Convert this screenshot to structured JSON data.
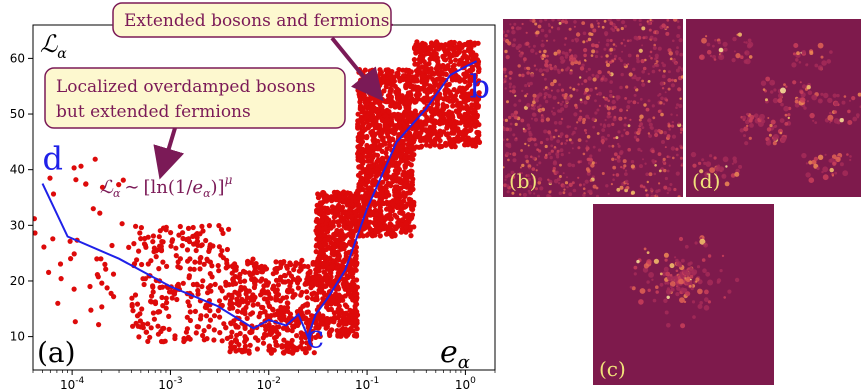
{
  "chart_data": {
    "type": "scatter",
    "panel_label": "(a)",
    "xscale": "log",
    "xlim": [
      4e-05,
      2.0
    ],
    "ylim": [
      4,
      66
    ],
    "x_tick_labels": [
      "10^-4",
      "10^-3",
      "10^-2",
      "10^-1",
      "10^0"
    ],
    "x_tick_values": [
      0.0001,
      0.001,
      0.01,
      0.1,
      1
    ],
    "y_tick_labels": [
      "10",
      "20",
      "30",
      "40",
      "50",
      "60"
    ],
    "y_tick_values": [
      10,
      20,
      30,
      40,
      50,
      60
    ],
    "ylabel_symbol": "ℒ",
    "ylabel_sub": "α",
    "xlabel_symbol": "e",
    "xlabel_sub": "α",
    "grid": false,
    "colors": {
      "scatter": "#dd0a0a",
      "line": "#1f21e8",
      "callout_fill": "#fdf8cf",
      "callout_border": "#7b1a57",
      "arrow": "#7b1a57"
    },
    "annotation_extended": "Extended bosons and fermions.",
    "annotation_localized_line1": "Localized overdamped bosons",
    "annotation_localized_line2": "but extended fermions",
    "formula": "ℒα ∼ [ln(1/eα)]^μ",
    "formula_parts": {
      "lhs": "ℒ",
      "lhs_sub": "α",
      "tilde": "∼",
      "open": "[ln(1/",
      "e": "e",
      "e_sub": "α",
      "close": ")]",
      "power": "μ"
    },
    "point_labels": [
      {
        "text": "d",
        "x": 5e-05,
        "y": 40
      },
      {
        "text": "c",
        "x": 0.024,
        "y": 8
      },
      {
        "text": "b",
        "x": 1.1,
        "y": 53
      }
    ],
    "scatter_series": {
      "name": "",
      "clusters": [
        {
          "x_range": [
            4e-05,
            0.0004
          ],
          "y_range": [
            12,
            42
          ],
          "count": 45
        },
        {
          "x_range": [
            0.0004,
            0.004
          ],
          "y_range": [
            9,
            30
          ],
          "count": 260
        },
        {
          "x_range": [
            0.004,
            0.03
          ],
          "y_range": [
            7,
            24
          ],
          "count": 450
        },
        {
          "x_range": [
            0.03,
            0.08
          ],
          "y_range": [
            10,
            36
          ],
          "count": 700
        },
        {
          "x_range": [
            0.08,
            0.3
          ],
          "y_range": [
            28,
            58
          ],
          "count": 1100
        },
        {
          "x_range": [
            0.3,
            1.4
          ],
          "y_range": [
            44,
            63
          ],
          "count": 700
        }
      ]
    },
    "median_line": {
      "name": "",
      "x": [
        5e-05,
        9e-05,
        0.0003,
        0.001,
        0.003,
        0.007,
        0.01,
        0.015,
        0.02,
        0.025,
        0.03,
        0.04,
        0.06,
        0.1,
        0.2,
        0.4,
        0.7,
        1.0,
        1.3
      ],
      "y": [
        37.5,
        28,
        24,
        19,
        15.5,
        11.5,
        13,
        12,
        14,
        10,
        14,
        17,
        22,
        33,
        45,
        51,
        57,
        58.5,
        59.5
      ]
    }
  },
  "panels": [
    {
      "label": "(b)",
      "description_colormap": "magma",
      "density": "uniform"
    },
    {
      "label": "(d)",
      "description_colormap": "magma",
      "density": "sparse"
    },
    {
      "label": "(c)",
      "description_colormap": "magma",
      "density": "central"
    }
  ]
}
